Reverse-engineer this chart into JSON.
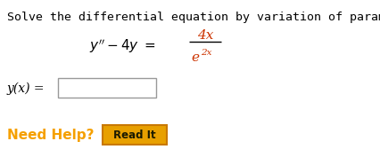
{
  "bg_color": "#ffffff",
  "title_text": "Solve the differential equation by variation of parameters.",
  "title_color": "#000000",
  "title_fontsize": 9.5,
  "eq_color_black": "#000000",
  "eq_color_red": "#cc3300",
  "need_help_text": "Need Help?",
  "need_help_color": "#f5a000",
  "read_it_text": "Read It",
  "read_it_bg": "#e8a000",
  "read_it_border": "#c87800",
  "yx_label": "y(x) ="
}
